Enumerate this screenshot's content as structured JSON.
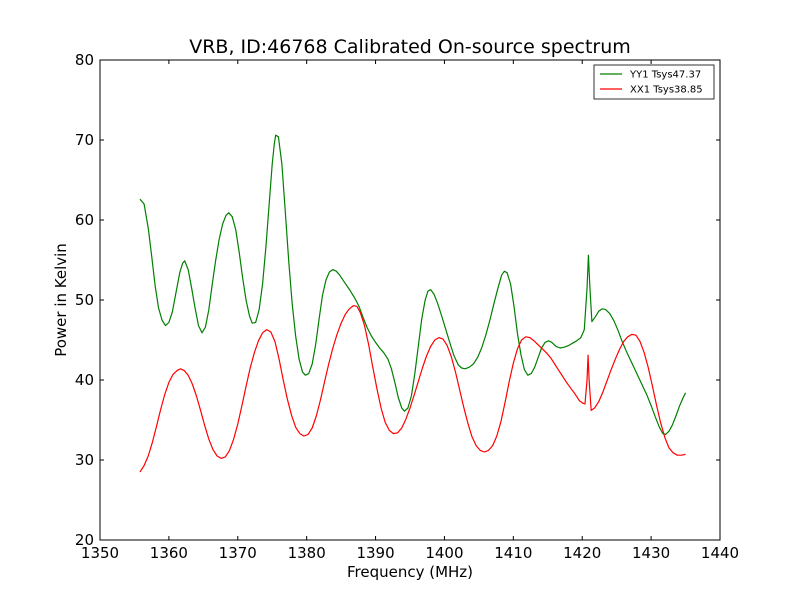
{
  "chart_data": {
    "type": "line",
    "title": "VRB, ID:46768 Calibrated On-source spectrum",
    "xlabel": "Frequency (MHz)",
    "ylabel": "Power in Kelvin",
    "xlim": [
      1350,
      1440
    ],
    "ylim": [
      20,
      80
    ],
    "xticks": [
      1350,
      1360,
      1370,
      1380,
      1390,
      1400,
      1410,
      1420,
      1430,
      1440
    ],
    "yticks": [
      20,
      30,
      40,
      50,
      60,
      70,
      80
    ],
    "grid": false,
    "legend_position": "top-right",
    "series": [
      {
        "name": "YY1 Tsys47.37",
        "color": "#008000",
        "points": [
          [
            1355.8,
            62.6
          ],
          [
            1356.4,
            62.0
          ],
          [
            1357.0,
            59.0
          ],
          [
            1357.5,
            55.5
          ],
          [
            1358.0,
            51.8
          ],
          [
            1358.5,
            49.0
          ],
          [
            1359.0,
            47.5
          ],
          [
            1359.5,
            46.8
          ],
          [
            1360.0,
            47.2
          ],
          [
            1360.5,
            48.5
          ],
          [
            1361.0,
            50.8
          ],
          [
            1361.6,
            53.5
          ],
          [
            1362.0,
            54.6
          ],
          [
            1362.3,
            54.9
          ],
          [
            1362.8,
            53.8
          ],
          [
            1363.3,
            51.5
          ],
          [
            1363.8,
            49.0
          ],
          [
            1364.3,
            46.8
          ],
          [
            1364.8,
            45.9
          ],
          [
            1365.3,
            46.6
          ],
          [
            1365.8,
            48.8
          ],
          [
            1366.3,
            52.0
          ],
          [
            1366.8,
            55.0
          ],
          [
            1367.3,
            57.6
          ],
          [
            1367.8,
            59.5
          ],
          [
            1368.3,
            60.6
          ],
          [
            1368.7,
            60.9
          ],
          [
            1369.2,
            60.4
          ],
          [
            1369.7,
            58.8
          ],
          [
            1370.2,
            56.0
          ],
          [
            1370.7,
            52.8
          ],
          [
            1371.2,
            50.0
          ],
          [
            1371.7,
            48.0
          ],
          [
            1372.1,
            47.1
          ],
          [
            1372.6,
            47.2
          ],
          [
            1373.1,
            48.8
          ],
          [
            1373.6,
            52.0
          ],
          [
            1374.1,
            56.8
          ],
          [
            1374.6,
            62.5
          ],
          [
            1375.0,
            67.0
          ],
          [
            1375.3,
            69.5
          ],
          [
            1375.5,
            70.6
          ],
          [
            1375.9,
            70.4
          ],
          [
            1376.4,
            67.0
          ],
          [
            1376.9,
            61.0
          ],
          [
            1377.4,
            54.8
          ],
          [
            1377.9,
            49.5
          ],
          [
            1378.4,
            45.5
          ],
          [
            1378.9,
            42.6
          ],
          [
            1379.4,
            41.0
          ],
          [
            1379.8,
            40.6
          ],
          [
            1380.3,
            40.8
          ],
          [
            1380.8,
            42.0
          ],
          [
            1381.3,
            44.4
          ],
          [
            1381.8,
            47.6
          ],
          [
            1382.3,
            50.6
          ],
          [
            1382.8,
            52.5
          ],
          [
            1383.3,
            53.5
          ],
          [
            1383.8,
            53.8
          ],
          [
            1384.3,
            53.6
          ],
          [
            1384.8,
            53.1
          ],
          [
            1385.5,
            52.2
          ],
          [
            1386.3,
            51.2
          ],
          [
            1387.0,
            50.2
          ],
          [
            1387.6,
            49.2
          ],
          [
            1388.2,
            47.8
          ],
          [
            1388.8,
            46.5
          ],
          [
            1389.4,
            45.5
          ],
          [
            1390.0,
            44.7
          ],
          [
            1390.6,
            44.0
          ],
          [
            1391.2,
            43.4
          ],
          [
            1391.8,
            42.6
          ],
          [
            1392.3,
            41.4
          ],
          [
            1392.8,
            39.7
          ],
          [
            1393.3,
            37.8
          ],
          [
            1393.8,
            36.5
          ],
          [
            1394.2,
            36.1
          ],
          [
            1394.7,
            36.5
          ],
          [
            1395.2,
            38.0
          ],
          [
            1395.7,
            40.8
          ],
          [
            1396.2,
            44.2
          ],
          [
            1396.7,
            47.6
          ],
          [
            1397.2,
            50.0
          ],
          [
            1397.6,
            51.1
          ],
          [
            1398.0,
            51.3
          ],
          [
            1398.5,
            50.7
          ],
          [
            1399.0,
            49.6
          ],
          [
            1399.6,
            48.0
          ],
          [
            1400.2,
            46.3
          ],
          [
            1400.8,
            44.6
          ],
          [
            1401.4,
            43.0
          ],
          [
            1402.0,
            41.9
          ],
          [
            1402.5,
            41.5
          ],
          [
            1403.0,
            41.4
          ],
          [
            1403.6,
            41.6
          ],
          [
            1404.2,
            42.0
          ],
          [
            1404.8,
            42.8
          ],
          [
            1405.4,
            44.0
          ],
          [
            1406.0,
            45.6
          ],
          [
            1406.6,
            47.5
          ],
          [
            1407.2,
            49.6
          ],
          [
            1407.8,
            51.6
          ],
          [
            1408.3,
            53.1
          ],
          [
            1408.7,
            53.6
          ],
          [
            1409.1,
            53.4
          ],
          [
            1409.6,
            52.0
          ],
          [
            1410.1,
            49.2
          ],
          [
            1410.6,
            45.8
          ],
          [
            1411.1,
            43.2
          ],
          [
            1411.6,
            41.3
          ],
          [
            1412.1,
            40.6
          ],
          [
            1412.6,
            40.8
          ],
          [
            1413.1,
            41.6
          ],
          [
            1413.6,
            42.8
          ],
          [
            1414.1,
            44.0
          ],
          [
            1414.6,
            44.7
          ],
          [
            1415.1,
            44.9
          ],
          [
            1415.6,
            44.7
          ],
          [
            1416.2,
            44.2
          ],
          [
            1416.8,
            44.0
          ],
          [
            1417.4,
            44.1
          ],
          [
            1418.0,
            44.3
          ],
          [
            1418.6,
            44.6
          ],
          [
            1419.2,
            44.9
          ],
          [
            1419.8,
            45.3
          ],
          [
            1420.3,
            46.3
          ],
          [
            1420.7,
            51.5
          ],
          [
            1420.9,
            55.6
          ],
          [
            1421.1,
            51.8
          ],
          [
            1421.4,
            47.3
          ],
          [
            1421.9,
            47.9
          ],
          [
            1422.4,
            48.6
          ],
          [
            1422.9,
            48.9
          ],
          [
            1423.4,
            48.8
          ],
          [
            1424.0,
            48.3
          ],
          [
            1424.6,
            47.4
          ],
          [
            1425.2,
            46.2
          ],
          [
            1425.8,
            44.8
          ],
          [
            1426.4,
            43.6
          ],
          [
            1427.0,
            42.5
          ],
          [
            1427.6,
            41.4
          ],
          [
            1428.2,
            40.3
          ],
          [
            1428.8,
            39.2
          ],
          [
            1429.4,
            38.1
          ],
          [
            1430.0,
            36.8
          ],
          [
            1430.6,
            35.4
          ],
          [
            1431.2,
            34.1
          ],
          [
            1431.7,
            33.3
          ],
          [
            1432.1,
            33.2
          ],
          [
            1432.6,
            33.6
          ],
          [
            1433.1,
            34.4
          ],
          [
            1433.6,
            35.5
          ],
          [
            1434.1,
            36.7
          ],
          [
            1434.6,
            37.7
          ],
          [
            1435.0,
            38.4
          ]
        ]
      },
      {
        "name": "XX1 Tsys38.85",
        "color": "#ff0000",
        "points": [
          [
            1355.8,
            28.5
          ],
          [
            1356.4,
            29.3
          ],
          [
            1357.0,
            30.5
          ],
          [
            1357.6,
            32.2
          ],
          [
            1358.2,
            34.2
          ],
          [
            1358.8,
            36.3
          ],
          [
            1359.4,
            38.2
          ],
          [
            1360.0,
            39.7
          ],
          [
            1360.6,
            40.7
          ],
          [
            1361.2,
            41.2
          ],
          [
            1361.7,
            41.4
          ],
          [
            1362.2,
            41.2
          ],
          [
            1362.8,
            40.6
          ],
          [
            1363.4,
            39.5
          ],
          [
            1364.0,
            38.0
          ],
          [
            1364.6,
            36.2
          ],
          [
            1365.2,
            34.3
          ],
          [
            1365.8,
            32.6
          ],
          [
            1366.4,
            31.3
          ],
          [
            1367.0,
            30.5
          ],
          [
            1367.6,
            30.2
          ],
          [
            1368.2,
            30.4
          ],
          [
            1368.8,
            31.2
          ],
          [
            1369.4,
            32.6
          ],
          [
            1370.0,
            34.5
          ],
          [
            1370.6,
            36.8
          ],
          [
            1371.2,
            39.2
          ],
          [
            1371.8,
            41.5
          ],
          [
            1372.4,
            43.4
          ],
          [
            1373.0,
            44.9
          ],
          [
            1373.6,
            45.9
          ],
          [
            1374.2,
            46.3
          ],
          [
            1374.8,
            46.0
          ],
          [
            1375.4,
            44.8
          ],
          [
            1376.0,
            42.6
          ],
          [
            1376.6,
            40.0
          ],
          [
            1377.2,
            37.6
          ],
          [
            1377.8,
            35.6
          ],
          [
            1378.4,
            34.1
          ],
          [
            1379.0,
            33.3
          ],
          [
            1379.6,
            33.0
          ],
          [
            1380.2,
            33.2
          ],
          [
            1380.8,
            34.0
          ],
          [
            1381.4,
            35.5
          ],
          [
            1382.0,
            37.5
          ],
          [
            1382.6,
            39.8
          ],
          [
            1383.2,
            42.0
          ],
          [
            1383.8,
            44.0
          ],
          [
            1384.4,
            45.7
          ],
          [
            1385.0,
            47.1
          ],
          [
            1385.6,
            48.2
          ],
          [
            1386.2,
            48.9
          ],
          [
            1386.8,
            49.3
          ],
          [
            1387.3,
            49.2
          ],
          [
            1387.8,
            48.4
          ],
          [
            1388.4,
            46.8
          ],
          [
            1389.0,
            44.4
          ],
          [
            1389.6,
            41.6
          ],
          [
            1390.2,
            38.9
          ],
          [
            1390.8,
            36.5
          ],
          [
            1391.4,
            34.7
          ],
          [
            1392.0,
            33.7
          ],
          [
            1392.6,
            33.3
          ],
          [
            1393.2,
            33.4
          ],
          [
            1393.8,
            34.0
          ],
          [
            1394.4,
            35.1
          ],
          [
            1395.0,
            36.5
          ],
          [
            1395.6,
            38.1
          ],
          [
            1396.2,
            39.8
          ],
          [
            1396.8,
            41.5
          ],
          [
            1397.4,
            43.0
          ],
          [
            1398.0,
            44.2
          ],
          [
            1398.6,
            45.0
          ],
          [
            1399.2,
            45.3
          ],
          [
            1399.8,
            45.1
          ],
          [
            1400.4,
            44.3
          ],
          [
            1401.0,
            42.9
          ],
          [
            1401.6,
            41.0
          ],
          [
            1402.2,
            38.8
          ],
          [
            1402.8,
            36.6
          ],
          [
            1403.4,
            34.6
          ],
          [
            1404.0,
            32.9
          ],
          [
            1404.6,
            31.8
          ],
          [
            1405.2,
            31.2
          ],
          [
            1405.8,
            31.0
          ],
          [
            1406.4,
            31.2
          ],
          [
            1407.0,
            31.8
          ],
          [
            1407.6,
            33.0
          ],
          [
            1408.2,
            34.8
          ],
          [
            1408.8,
            37.2
          ],
          [
            1409.4,
            39.8
          ],
          [
            1410.0,
            42.1
          ],
          [
            1410.6,
            43.9
          ],
          [
            1411.2,
            45.0
          ],
          [
            1411.8,
            45.4
          ],
          [
            1412.4,
            45.3
          ],
          [
            1413.0,
            44.9
          ],
          [
            1413.6,
            44.4
          ],
          [
            1414.2,
            43.9
          ],
          [
            1414.8,
            43.4
          ],
          [
            1415.4,
            42.8
          ],
          [
            1416.0,
            42.0
          ],
          [
            1416.6,
            41.2
          ],
          [
            1417.2,
            40.4
          ],
          [
            1417.8,
            39.6
          ],
          [
            1418.4,
            38.9
          ],
          [
            1419.0,
            38.2
          ],
          [
            1419.6,
            37.4
          ],
          [
            1420.1,
            37.1
          ],
          [
            1420.4,
            37.0
          ],
          [
            1420.7,
            40.0
          ],
          [
            1420.85,
            43.1
          ],
          [
            1421.0,
            40.0
          ],
          [
            1421.3,
            36.2
          ],
          [
            1421.8,
            36.5
          ],
          [
            1422.4,
            37.3
          ],
          [
            1423.0,
            38.5
          ],
          [
            1423.6,
            39.9
          ],
          [
            1424.2,
            41.3
          ],
          [
            1424.8,
            42.6
          ],
          [
            1425.4,
            43.8
          ],
          [
            1426.0,
            44.8
          ],
          [
            1426.6,
            45.4
          ],
          [
            1427.2,
            45.7
          ],
          [
            1427.8,
            45.6
          ],
          [
            1428.4,
            44.8
          ],
          [
            1429.0,
            43.4
          ],
          [
            1429.6,
            41.5
          ],
          [
            1430.2,
            39.2
          ],
          [
            1430.8,
            36.8
          ],
          [
            1431.4,
            34.6
          ],
          [
            1432.0,
            32.8
          ],
          [
            1432.6,
            31.5
          ],
          [
            1433.2,
            30.9
          ],
          [
            1433.8,
            30.6
          ],
          [
            1434.4,
            30.6
          ],
          [
            1435.0,
            30.7
          ]
        ]
      }
    ]
  }
}
